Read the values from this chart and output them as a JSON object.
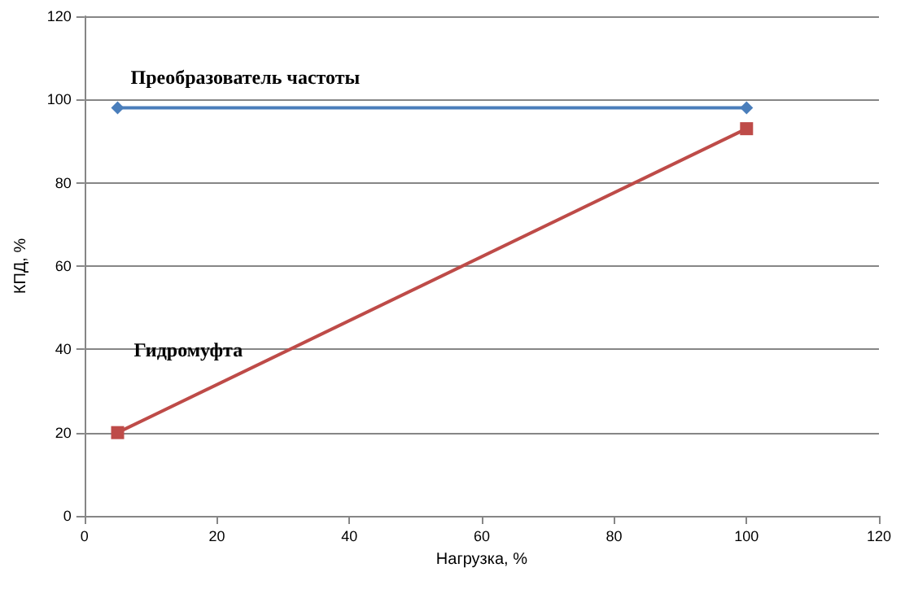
{
  "chart_data": {
    "type": "line",
    "xlabel": "Нагрузка, %",
    "ylabel": "КПД, %",
    "x": [
      5,
      100
    ],
    "xlim": [
      0,
      120
    ],
    "xticks": [
      0,
      20,
      40,
      60,
      80,
      100,
      120
    ],
    "ylim": [
      0,
      120
    ],
    "yticks": [
      0,
      20,
      40,
      60,
      80,
      100,
      120
    ],
    "grid": "y",
    "legend": false,
    "series": [
      {
        "name": "Преобразователь частоты",
        "color": "#4a7ebb",
        "marker": "diamond",
        "values": [
          98,
          98
        ]
      },
      {
        "name": "Гидромуфта",
        "color": "#be4b48",
        "marker": "square",
        "values": [
          20,
          93
        ]
      }
    ]
  }
}
